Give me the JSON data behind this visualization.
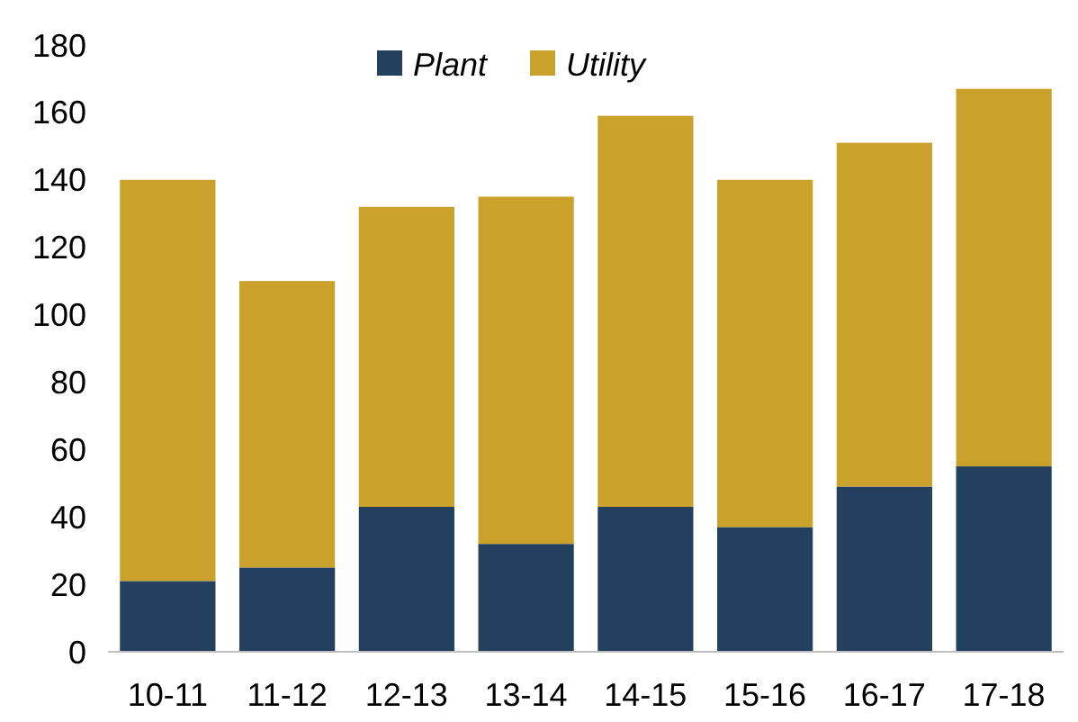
{
  "chart_data": {
    "type": "bar",
    "stacked": true,
    "categories": [
      "10-11",
      "11-12",
      "12-13",
      "13-14",
      "14-15",
      "15-16",
      "16-17",
      "17-18"
    ],
    "series": [
      {
        "name": "Plant",
        "color": "#23415f",
        "values": [
          21,
          25,
          43,
          32,
          43,
          37,
          49,
          55
        ]
      },
      {
        "name": "Utility",
        "color": "#c9a12b",
        "values": [
          119,
          85,
          89,
          103,
          116,
          103,
          102,
          112
        ]
      }
    ],
    "ylim": [
      0,
      180
    ],
    "yticks": [
      0,
      20,
      40,
      60,
      80,
      100,
      120,
      140,
      160,
      180
    ],
    "grid": false,
    "legend": "top"
  }
}
